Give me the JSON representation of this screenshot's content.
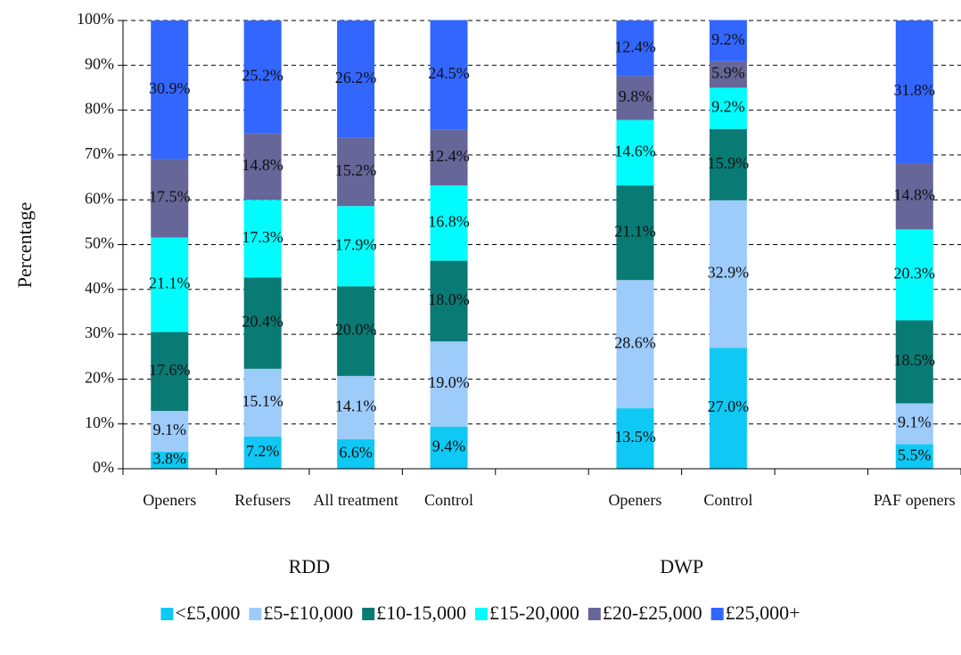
{
  "chart_data": {
    "type": "stacked_bar",
    "y_label": "Percentage",
    "categories": [
      "Openers",
      "Refusers",
      "All treatment",
      "Control",
      null,
      "Openers",
      "Control",
      null,
      "PAF openers"
    ],
    "group_labels": [
      "RDD",
      "DWP"
    ],
    "series": [
      {
        "name": "<£5,000",
        "color": "#0fc8f3",
        "values": [
          3.8,
          7.2,
          6.6,
          9.4,
          null,
          13.5,
          27.0,
          null,
          5.5
        ],
        "value_labels": [
          "3.8%",
          "7.2%",
          "6.6%",
          "9.4%",
          null,
          "13.5%",
          "27.0%",
          null,
          "5.5%"
        ]
      },
      {
        "name": "£5-£10,000",
        "color": "#9dcbfa",
        "values": [
          9.1,
          15.1,
          14.1,
          19.0,
          null,
          28.6,
          32.9,
          null,
          9.1
        ],
        "value_labels": [
          "9.1%",
          "15.1%",
          "14.1%",
          "19.0%",
          null,
          "28.6%",
          "32.9%",
          null,
          "9.1%"
        ]
      },
      {
        "name": "£10-15,000",
        "color": "#097a74",
        "values": [
          17.6,
          20.4,
          20.0,
          18.0,
          null,
          21.1,
          15.9,
          null,
          18.5
        ],
        "value_labels": [
          "17.6%",
          "20.4%",
          "20.0%",
          "18.0%",
          null,
          "21.1%",
          "15.9%",
          null,
          "18.5%"
        ]
      },
      {
        "name": "£15-20,000",
        "color": "#00fcfc",
        "values": [
          21.1,
          17.3,
          17.9,
          16.8,
          null,
          14.6,
          9.2,
          null,
          20.3
        ],
        "value_labels": [
          "21.1%",
          "17.3%",
          "17.9%",
          "16.8%",
          null,
          "14.6%",
          "9.2%",
          null,
          "20.3%"
        ]
      },
      {
        "name": "£20-£25,000",
        "color": "#666699",
        "values": [
          17.5,
          14.8,
          15.2,
          12.4,
          null,
          9.8,
          5.9,
          null,
          14.8
        ],
        "value_labels": [
          "17.5%",
          "14.8%",
          "15.2%",
          "12.4%",
          null,
          "9.8%",
          "5.9%",
          null,
          "14.8%"
        ]
      },
      {
        "name": "£25,000+",
        "color": "#3366ff",
        "values": [
          30.9,
          25.2,
          26.2,
          24.5,
          null,
          12.4,
          9.2,
          null,
          31.8
        ],
        "value_labels": [
          "30.9%",
          "25.2%",
          "26.2%",
          "24.5%",
          null,
          "12.4%",
          "9.2%",
          null,
          "31.8%"
        ]
      }
    ],
    "ylim": [
      0,
      100
    ],
    "yticks": [
      {
        "value": 0,
        "label": "0%"
      },
      {
        "value": 10,
        "label": "10%"
      },
      {
        "value": 20,
        "label": "20%"
      },
      {
        "value": 30,
        "label": "30%"
      },
      {
        "value": 40,
        "label": "40%"
      },
      {
        "value": 50,
        "label": "50%"
      },
      {
        "value": 60,
        "label": "60%"
      },
      {
        "value": 70,
        "label": "70%"
      },
      {
        "value": 80,
        "label": "80%"
      },
      {
        "value": 90,
        "label": "90%"
      },
      {
        "value": 100,
        "label": "100%"
      }
    ],
    "grid": true
  }
}
